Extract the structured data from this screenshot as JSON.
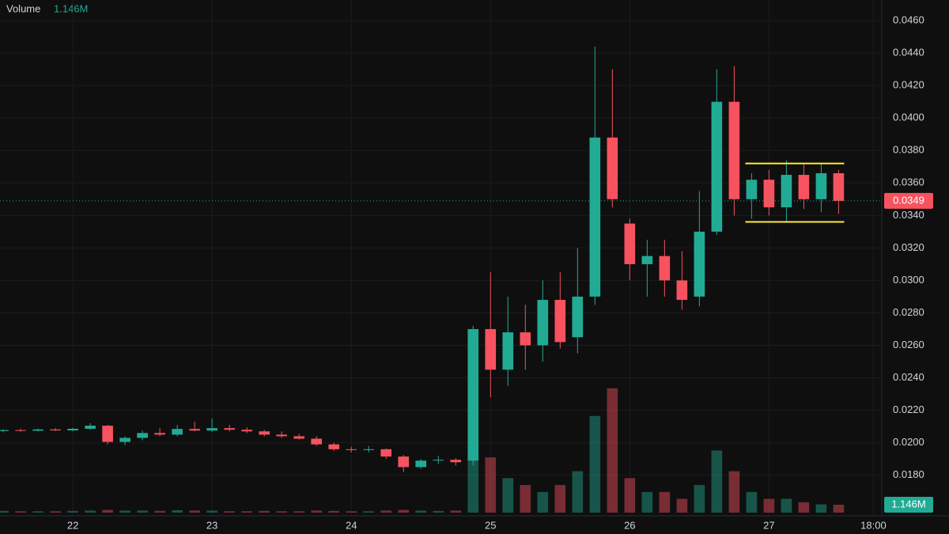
{
  "chart_data": {
    "type": "candlestick",
    "volume_name": "Volume",
    "volume_label": "1.146M",
    "up_color": "#22ab94",
    "down_color": "#f7525f",
    "grid": true,
    "x": [
      21.5,
      21.625,
      21.75,
      21.875,
      22,
      22.125,
      22.25,
      22.375,
      22.5,
      22.625,
      22.75,
      22.875,
      23,
      23.125,
      23.25,
      23.375,
      23.5,
      23.625,
      23.75,
      23.875,
      24,
      24.125,
      24.25,
      24.375,
      24.5,
      24.625,
      24.75,
      24.875,
      25,
      25.125,
      25.25,
      25.375,
      25.5,
      25.625,
      25.75,
      25.875,
      26,
      26.125,
      26.25,
      26.375,
      26.5,
      26.625,
      26.75,
      26.875,
      27,
      27.125,
      27.25,
      27.375,
      27.5
    ],
    "open": [
      0.02072,
      0.02078,
      0.02074,
      0.02082,
      0.02076,
      0.02086,
      0.02105,
      0.02005,
      0.0203,
      0.0206,
      0.0205,
      0.02085,
      0.02075,
      0.0209,
      0.0208,
      0.0207,
      0.0205,
      0.0204,
      0.02025,
      0.0199,
      0.0196,
      0.01955,
      0.0196,
      0.01915,
      0.0185,
      0.0189,
      0.01895,
      0.0189,
      0.027,
      0.0245,
      0.0268,
      0.026,
      0.0288,
      0.0265,
      0.029,
      0.0388,
      0.0335,
      0.031,
      0.0315,
      0.03,
      0.029,
      0.033,
      0.041,
      0.035,
      0.0362,
      0.0345,
      0.0365,
      0.035,
      0.0366
    ],
    "high": [
      0.02082,
      0.02085,
      0.02088,
      0.0209,
      0.02092,
      0.0212,
      0.0211,
      0.0204,
      0.02075,
      0.0209,
      0.0211,
      0.0213,
      0.0215,
      0.0211,
      0.02095,
      0.0208,
      0.0207,
      0.02055,
      0.0204,
      0.02,
      0.01975,
      0.0198,
      0.01965,
      0.01925,
      0.019,
      0.0192,
      0.01905,
      0.0272,
      0.0305,
      0.029,
      0.0285,
      0.03,
      0.0305,
      0.032,
      0.0444,
      0.043,
      0.0338,
      0.0325,
      0.0325,
      0.0318,
      0.0355,
      0.043,
      0.0432,
      0.0366,
      0.0368,
      0.0374,
      0.0372,
      0.0372,
      0.0368
    ],
    "low": [
      0.02064,
      0.02068,
      0.0207,
      0.02072,
      0.0207,
      0.0208,
      0.0199,
      0.01985,
      0.02015,
      0.0204,
      0.0204,
      0.0207,
      0.02065,
      0.0207,
      0.0206,
      0.0204,
      0.0203,
      0.0202,
      0.0198,
      0.0195,
      0.0194,
      0.0194,
      0.019,
      0.0182,
      0.0184,
      0.0187,
      0.0186,
      0.0186,
      0.0228,
      0.0235,
      0.0245,
      0.025,
      0.0258,
      0.0255,
      0.0285,
      0.0345,
      0.03,
      0.029,
      0.029,
      0.0282,
      0.0284,
      0.0328,
      0.034,
      0.0338,
      0.034,
      0.0336,
      0.0344,
      0.0342,
      0.0341
    ],
    "close": [
      0.02078,
      0.02074,
      0.02082,
      0.02076,
      0.02086,
      0.02105,
      0.02005,
      0.0203,
      0.0206,
      0.0205,
      0.02085,
      0.02075,
      0.0209,
      0.0208,
      0.0207,
      0.0205,
      0.0204,
      0.02025,
      0.0199,
      0.0196,
      0.01955,
      0.0196,
      0.01915,
      0.0185,
      0.0189,
      0.01895,
      0.0188,
      0.027,
      0.0245,
      0.0268,
      0.026,
      0.0288,
      0.0262,
      0.029,
      0.0388,
      0.035,
      0.031,
      0.0315,
      0.03,
      0.0288,
      0.033,
      0.041,
      0.035,
      0.0362,
      0.0345,
      0.0365,
      0.035,
      0.0366,
      0.0349
    ],
    "volume": [
      250000,
      200000,
      200000,
      200000,
      250000,
      300000,
      400000,
      300000,
      300000,
      250000,
      350000,
      300000,
      300000,
      200000,
      200000,
      250000,
      200000,
      200000,
      300000,
      250000,
      200000,
      200000,
      300000,
      400000,
      300000,
      250000,
      300000,
      8000000,
      8000000,
      5000000,
      4000000,
      3000000,
      4000000,
      6000000,
      14000000,
      18000000,
      5000000,
      3000000,
      3000000,
      2000000,
      4000000,
      9000000,
      6000000,
      3000000,
      2000000,
      2000000,
      1500000,
      1200000,
      1146000
    ],
    "volume_lim": [
      0,
      26000000
    ],
    "levels": [
      {
        "value": 0.0372,
        "from": 26.83,
        "to": 27.54,
        "color": "#ffeb3b"
      },
      {
        "value": 0.0336,
        "from": 26.83,
        "to": 27.54,
        "color": "#ffeb3b"
      }
    ],
    "xlim": [
      21.477,
      27.81
    ],
    "ylim": [
      0.0155,
      0.04727
    ],
    "xticks": [
      22,
      23,
      24,
      25,
      26,
      27,
      {
        "value": 27.75,
        "label": "18:00"
      }
    ],
    "yticks": [
      {
        "value": 0.046,
        "label": "0.0460"
      },
      {
        "value": 0.044,
        "label": "0.0440"
      },
      {
        "value": 0.042,
        "label": "0.0420"
      },
      {
        "value": 0.04,
        "label": "0.0400"
      },
      {
        "value": 0.038,
        "label": "0.0380"
      },
      {
        "value": 0.036,
        "label": "0.0360"
      },
      {
        "value": 0.034,
        "label": "0.0340"
      },
      {
        "value": 0.032,
        "label": "0.0320"
      },
      {
        "value": 0.03,
        "label": "0.0300"
      },
      {
        "value": 0.028,
        "label": "0.0280"
      },
      {
        "value": 0.026,
        "label": "0.0260"
      },
      {
        "value": 0.024,
        "label": "0.0240"
      },
      {
        "value": 0.022,
        "label": "0.0220"
      },
      {
        "value": 0.02,
        "label": "0.0200"
      },
      {
        "value": 0.018,
        "label": "0.0180"
      }
    ]
  }
}
